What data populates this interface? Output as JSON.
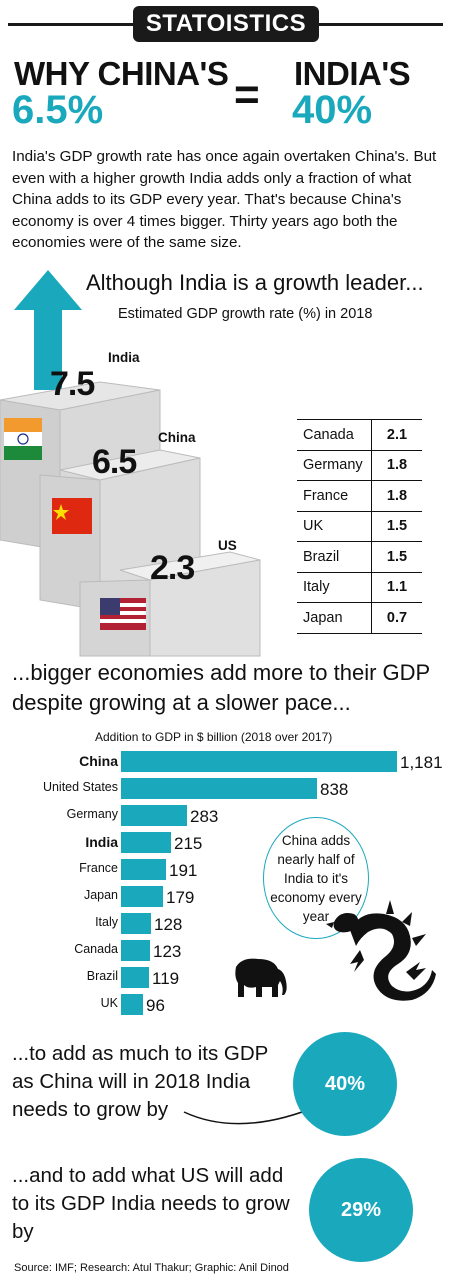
{
  "masthead": "STATOISTICS",
  "headline": {
    "left_title": "WHY CHINA'S",
    "left_value": "6.5%",
    "equals": "=",
    "right_title": "INDIA'S",
    "right_value": "40%"
  },
  "intro": "India's GDP growth rate has once again overtaken China's. But even with a higher growth India adds only a fraction of what China adds to its GDP every year. That's because China's economy is over 4 times bigger. Thirty years ago both the economies were of the same size.",
  "section1": {
    "title": "Although India is a growth leader...",
    "subtitle": "Estimated GDP growth rate (%) in 2018"
  },
  "section2": {
    "title": "...bigger economies add more to their GDP despite growing at a slower pace...",
    "subtitle": "Addition to GDP in $ billion (2018 over 2017)",
    "callout": "China adds nearly half of India to it's economy every year"
  },
  "section3": {
    "text": "...to add as much to its GDP as China will in 2018 India needs to grow by",
    "value": "40%"
  },
  "section4": {
    "text": "...and to add what US will add to its GDP India needs to grow by",
    "value": "29%"
  },
  "source": "Source: IMF; Research: Atul Thakur; Graphic: Anil Dinod",
  "colors": {
    "accent": "#1aa8bd",
    "dark": "#1a1a1a"
  },
  "icons": [
    "up-arrow-icon",
    "india-flag-icon",
    "china-flag-icon",
    "us-flag-icon",
    "elephant-icon",
    "dragon-icon"
  ],
  "chart_data": [
    {
      "type": "bar",
      "title": "Estimated GDP growth rate (%) in 2018",
      "categories": [
        "India",
        "China",
        "US"
      ],
      "values": [
        7.5,
        6.5,
        2.3
      ],
      "labels": [
        "7.5",
        "6.5",
        "2.3"
      ]
    },
    {
      "type": "table",
      "title": "Estimated GDP growth rate (%) in 2018",
      "rows": [
        [
          "Canada",
          "2.1"
        ],
        [
          "Germany",
          "1.8"
        ],
        [
          "France",
          "1.8"
        ],
        [
          "UK",
          "1.5"
        ],
        [
          "Brazil",
          "1.5"
        ],
        [
          "Italy",
          "1.1"
        ],
        [
          "Japan",
          "0.7"
        ]
      ]
    },
    {
      "type": "bar",
      "orientation": "horizontal",
      "title": "Addition to GDP in $ billion (2018 over 2017)",
      "categories": [
        "China",
        "United States",
        "Germany",
        "India",
        "France",
        "Japan",
        "Italy",
        "Canada",
        "Brazil",
        "UK"
      ],
      "values": [
        1181,
        838,
        283,
        215,
        191,
        179,
        128,
        123,
        119,
        96
      ],
      "labels": [
        "1,181",
        "838",
        "283",
        "215",
        "191",
        "179",
        "128",
        "123",
        "119",
        "96"
      ],
      "highlighted": [
        "China",
        "India"
      ],
      "xlim": [
        0,
        1181
      ]
    }
  ]
}
